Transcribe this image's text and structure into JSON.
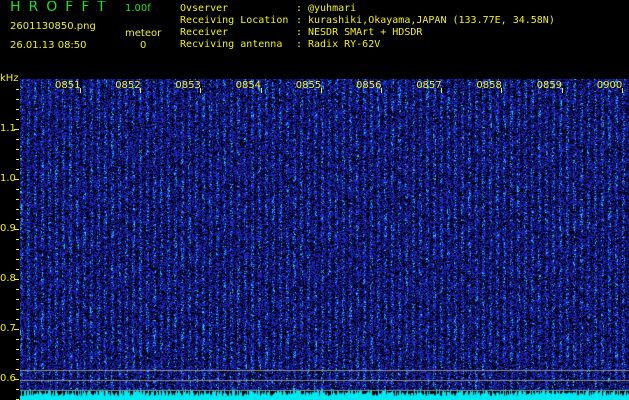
{
  "header": {
    "app_name": "HROFFT",
    "version": "1.00f",
    "filename": "2601130850.png",
    "datetime": "26.01.13 08:50",
    "meteor_label": "meteor",
    "meteor_count": "0"
  },
  "info": [
    {
      "label": "Ovserver",
      "value": "@yuhmari"
    },
    {
      "label": "Receiving Location",
      "value": "kurashiki,Okayama,JAPAN (133.77E, 34.58N)"
    },
    {
      "label": "Receiver",
      "value": "NESDR SMArt + HDSDR"
    },
    {
      "label": "Recviving antenna",
      "value": "Radix RY-62V"
    }
  ],
  "spectrogram": {
    "y_unit": "kHz",
    "y_ticks": [
      "1.1",
      "1.0",
      "0.9",
      "0.8",
      "0.7",
      "0.6"
    ],
    "time_labels": [
      "0851",
      "0852",
      "0853",
      "0854",
      "0855",
      "0856",
      "0857",
      "0858",
      "0859",
      "0900"
    ],
    "colors": {
      "background": "#000010",
      "noise": "#1a2adf",
      "signal": "#40e0ff",
      "baseline": "#00e8f0",
      "axis": "#f0f020"
    }
  }
}
